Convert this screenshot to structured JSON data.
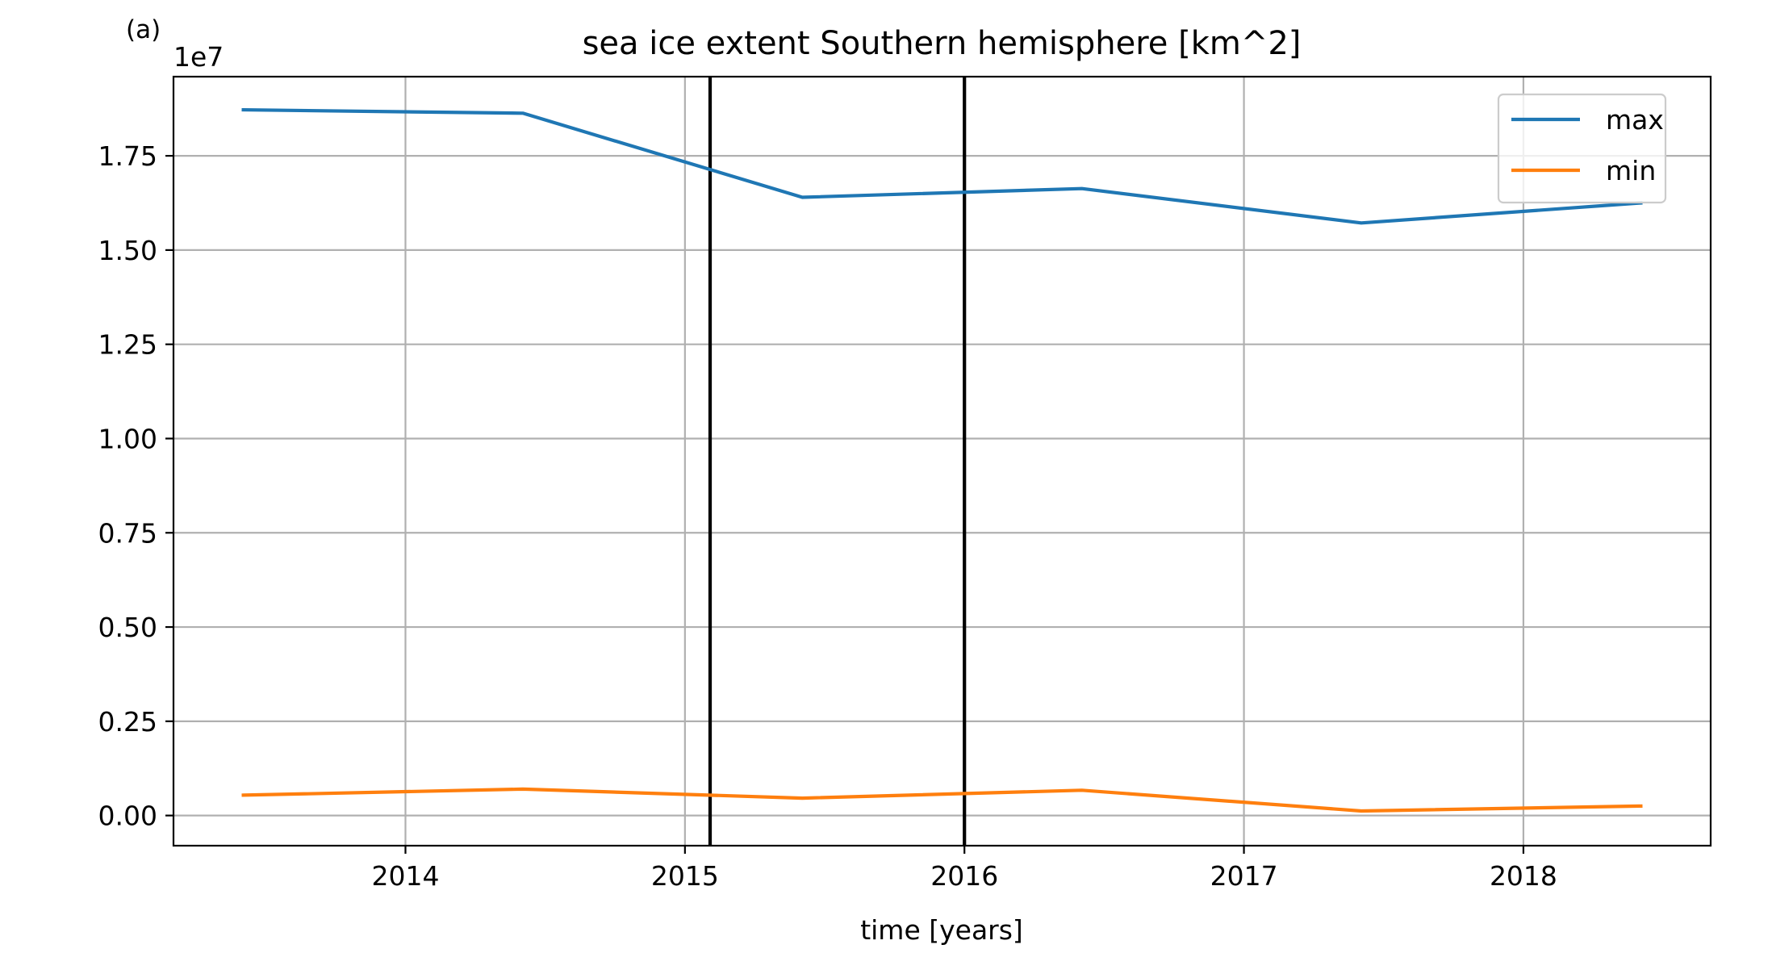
{
  "panel_label": "(a)",
  "chart_data": {
    "type": "line",
    "title": "sea ice extent Southern hemisphere [km^2]",
    "xlabel": "time [years]",
    "ylabel": "",
    "y_scale_label": "1e7",
    "y_scale": 10000000,
    "xlim": [
      2013.17,
      2018.67
    ],
    "ylim": [
      -0.08,
      1.96
    ],
    "x_ticks": [
      2014,
      2015,
      2016,
      2017,
      2018
    ],
    "y_ticks": [
      0.0,
      0.25,
      0.5,
      0.75,
      1.0,
      1.25,
      1.5,
      1.75
    ],
    "x_tick_labels": [
      "2014",
      "2015",
      "2016",
      "2017",
      "2018"
    ],
    "y_tick_labels": [
      "0.00",
      "0.25",
      "0.50",
      "0.75",
      "1.00",
      "1.25",
      "1.50",
      "1.75"
    ],
    "grid": true,
    "legend_position": "top-right",
    "vertical_lines": [
      2015.09,
      2016.0
    ],
    "x": [
      2013.42,
      2014.42,
      2015.42,
      2016.42,
      2017.42,
      2018.42
    ],
    "series": [
      {
        "name": "max",
        "color": "#1f77b4",
        "values": [
          1.872,
          1.863,
          1.64,
          1.663,
          1.572,
          1.625
        ]
      },
      {
        "name": "min",
        "color": "#ff7f0e",
        "values": [
          0.054,
          0.07,
          0.046,
          0.067,
          0.012,
          0.025
        ]
      }
    ]
  }
}
